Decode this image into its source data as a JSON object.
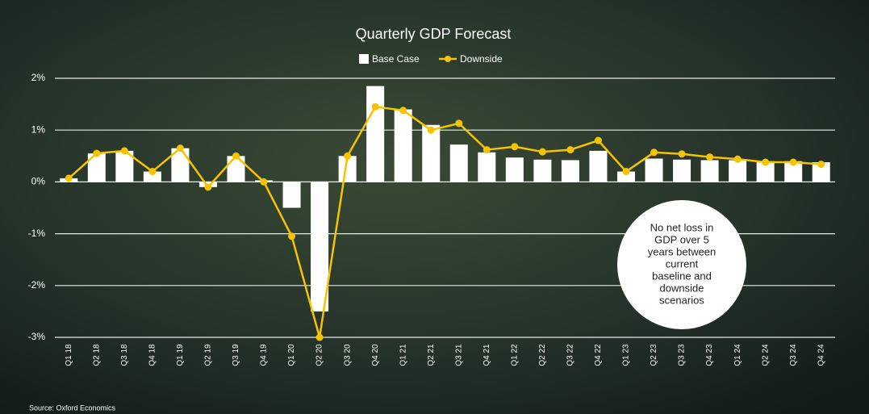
{
  "chart_data": {
    "type": "bar_line",
    "title": "Quarterly GDP Forecast",
    "categories": [
      "Q1 18",
      "Q2 18",
      "Q3 18",
      "Q4 18",
      "Q1 19",
      "Q2 19",
      "Q3 19",
      "Q4 19",
      "Q1 20",
      "Q2 20",
      "Q3 20",
      "Q4 20",
      "Q1 21",
      "Q2 21",
      "Q3 21",
      "Q4 21",
      "Q1 22",
      "Q2 22",
      "Q3 22",
      "Q4 22",
      "Q1 23",
      "Q2 23",
      "Q3 23",
      "Q4 23",
      "Q1 24",
      "Q2 24",
      "Q3 24",
      "Q4 24"
    ],
    "series": [
      {
        "name": "Base Case",
        "type": "bar",
        "color": "#ffffff",
        "values": [
          0.07,
          0.55,
          0.6,
          0.2,
          0.65,
          -0.1,
          0.5,
          0.03,
          -0.5,
          -2.5,
          0.5,
          1.85,
          1.4,
          1.1,
          0.72,
          0.57,
          0.47,
          0.43,
          0.42,
          0.6,
          0.2,
          0.45,
          0.43,
          0.42,
          0.42,
          0.4,
          0.4,
          0.38
        ]
      },
      {
        "name": "Downside",
        "type": "line",
        "color": "#f5c400",
        "values": [
          0.07,
          0.55,
          0.6,
          0.2,
          0.65,
          -0.1,
          0.5,
          0.0,
          -1.05,
          -3.0,
          0.5,
          1.45,
          1.38,
          1.0,
          1.13,
          0.62,
          0.68,
          0.58,
          0.62,
          0.8,
          0.2,
          0.57,
          0.54,
          0.48,
          0.44,
          0.38,
          0.38,
          0.34
        ]
      }
    ],
    "ylim": [
      -3,
      2
    ],
    "yticks": [
      {
        "value": -3,
        "label": "-3%"
      },
      {
        "value": -2,
        "label": "-2%"
      },
      {
        "value": -1,
        "label": "-1%"
      },
      {
        "value": 0,
        "label": "0%"
      },
      {
        "value": 1,
        "label": "1%"
      },
      {
        "value": 2,
        "label": "2%"
      }
    ],
    "grid": true,
    "annotation": [
      "No net loss in",
      "GDP over 5",
      "years between",
      "current",
      "baseline and",
      "downside",
      "scenarios"
    ],
    "source": "Source: Oxford Economics"
  }
}
